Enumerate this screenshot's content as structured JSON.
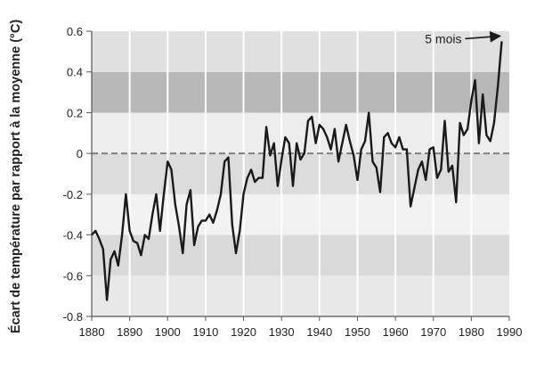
{
  "chart_data": {
    "type": "line",
    "title": "",
    "xlabel": "",
    "ylabel": "Écart de température par rapport à la moyenne (°C)",
    "xlim": [
      1880,
      1990
    ],
    "ylim": [
      -0.8,
      0.6
    ],
    "xticks": [
      1880,
      1890,
      1900,
      1910,
      1920,
      1930,
      1940,
      1950,
      1960,
      1970,
      1980,
      1990
    ],
    "yticks": [
      -0.8,
      -0.6,
      -0.4,
      -0.2,
      0,
      0.2,
      0.4,
      0.6
    ],
    "ytick_labels": [
      "-0.8",
      "-0.6",
      "-0.4",
      "-0.2",
      "0",
      "0.2",
      "0.4",
      "0.6"
    ],
    "grid": "vertical white lines at decades, alternating horizontal bands",
    "reference_line": {
      "y": 0,
      "style": "dashed"
    },
    "annotation": {
      "text": "5 mois",
      "x": 1988,
      "y": 0.55
    },
    "series": [
      {
        "color": "#1a1a1a",
        "x": [
          1880,
          1881,
          1882,
          1883,
          1884,
          1885,
          1886,
          1887,
          1888,
          1889,
          1890,
          1891,
          1892,
          1893,
          1894,
          1895,
          1896,
          1897,
          1898,
          1899,
          1900,
          1901,
          1902,
          1903,
          1904,
          1905,
          1906,
          1907,
          1908,
          1909,
          1910,
          1911,
          1912,
          1913,
          1914,
          1915,
          1916,
          1917,
          1918,
          1919,
          1920,
          1921,
          1922,
          1923,
          1924,
          1925,
          1926,
          1927,
          1928,
          1929,
          1930,
          1931,
          1932,
          1933,
          1934,
          1935,
          1936,
          1937,
          1938,
          1939,
          1940,
          1941,
          1942,
          1943,
          1944,
          1945,
          1946,
          1947,
          1948,
          1949,
          1950,
          1951,
          1952,
          1953,
          1954,
          1955,
          1956,
          1957,
          1958,
          1959,
          1960,
          1961,
          1962,
          1963,
          1964,
          1965,
          1966,
          1967,
          1968,
          1969,
          1970,
          1971,
          1972,
          1973,
          1974,
          1975,
          1976,
          1977,
          1978,
          1979,
          1980,
          1981,
          1982,
          1983,
          1984,
          1985,
          1986,
          1987,
          1988
        ],
        "y": [
          -0.4,
          -0.38,
          -0.42,
          -0.47,
          -0.72,
          -0.52,
          -0.48,
          -0.55,
          -0.4,
          -0.2,
          -0.38,
          -0.43,
          -0.44,
          -0.5,
          -0.4,
          -0.42,
          -0.3,
          -0.2,
          -0.38,
          -0.2,
          -0.04,
          -0.08,
          -0.25,
          -0.36,
          -0.49,
          -0.25,
          -0.18,
          -0.45,
          -0.36,
          -0.33,
          -0.33,
          -0.3,
          -0.34,
          -0.28,
          -0.2,
          -0.04,
          -0.02,
          -0.35,
          -0.49,
          -0.38,
          -0.2,
          -0.12,
          -0.08,
          -0.14,
          -0.12,
          -0.12,
          0.13,
          -0.01,
          0.05,
          -0.16,
          -0.03,
          0.08,
          0.05,
          -0.16,
          0.05,
          -0.03,
          0.0,
          0.16,
          0.18,
          0.05,
          0.14,
          0.12,
          0.08,
          0.02,
          0.12,
          -0.04,
          0.05,
          0.14,
          0.06,
          -0.01,
          -0.13,
          0.02,
          0.06,
          0.2,
          -0.04,
          -0.07,
          -0.19,
          0.08,
          0.1,
          0.05,
          0.03,
          0.08,
          0.02,
          0.02,
          -0.26,
          -0.17,
          -0.08,
          -0.04,
          -0.13,
          0.02,
          0.03,
          -0.12,
          -0.08,
          0.16,
          -0.09,
          -0.06,
          -0.24,
          0.15,
          0.09,
          0.12,
          0.26,
          0.36,
          0.05,
          0.29,
          0.09,
          0.06,
          0.15,
          0.33,
          0.55
        ]
      }
    ],
    "band_colors": [
      "#e8e8e8",
      "#dadada",
      "#f2f2f2",
      "#dcdcdc",
      "#ededed",
      "#b8b8b8",
      "#e0e0e0",
      "#b4b4b4"
    ]
  }
}
